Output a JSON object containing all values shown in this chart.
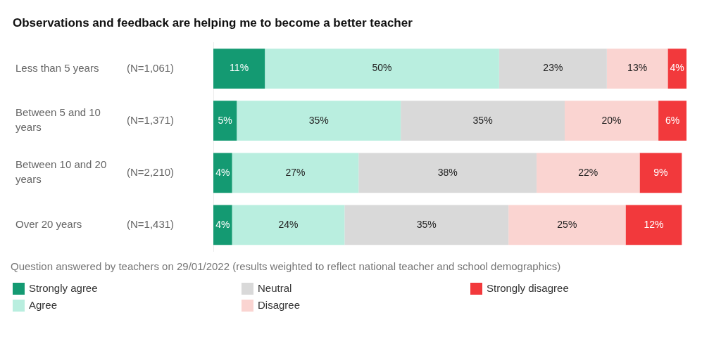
{
  "chart_data": {
    "type": "bar",
    "orientation": "horizontal",
    "stacked": true,
    "title": "Observations and feedback are helping me to become a better teacher",
    "categories": [
      "Less than 5 years",
      "Between 5 and 10 years",
      "Between 10 and 20 years",
      "Over 20 years"
    ],
    "series": [
      {
        "name": "Strongly agree",
        "color": "#149a72",
        "values": [
          11,
          5,
          4,
          4
        ],
        "value_labels": [
          "11%",
          "5%",
          "4%",
          "4%"
        ]
      },
      {
        "name": "Agree",
        "color": "#b9eedf",
        "values": [
          50,
          35,
          27,
          24
        ],
        "value_labels": [
          "50%",
          "35%",
          "27%",
          "24%"
        ]
      },
      {
        "name": "Neutral",
        "color": "#d9d9d9",
        "values": [
          23,
          35,
          38,
          35
        ],
        "value_labels": [
          "23%",
          "35%",
          "38%",
          "35%"
        ]
      },
      {
        "name": "Disagree",
        "color": "#fad4d1",
        "values": [
          13,
          20,
          22,
          25
        ],
        "value_labels": [
          "13%",
          "20%",
          "22%",
          "25%"
        ]
      },
      {
        "name": "Strongly disagree",
        "color": "#f2393c",
        "values": [
          4,
          6,
          9,
          12
        ],
        "value_labels": [
          "4%",
          "6%",
          "9%",
          "12%"
        ]
      }
    ],
    "annotations": [
      "(N=1,061)",
      "(N=1,371)",
      "(N=2,210)",
      "(N=1,431)",
      "Question answered by teachers on 29/01/2022 (results weighted to reflect national teacher and school demographics)"
    ],
    "legend": "bottom",
    "tick_labels": "y"
  }
}
